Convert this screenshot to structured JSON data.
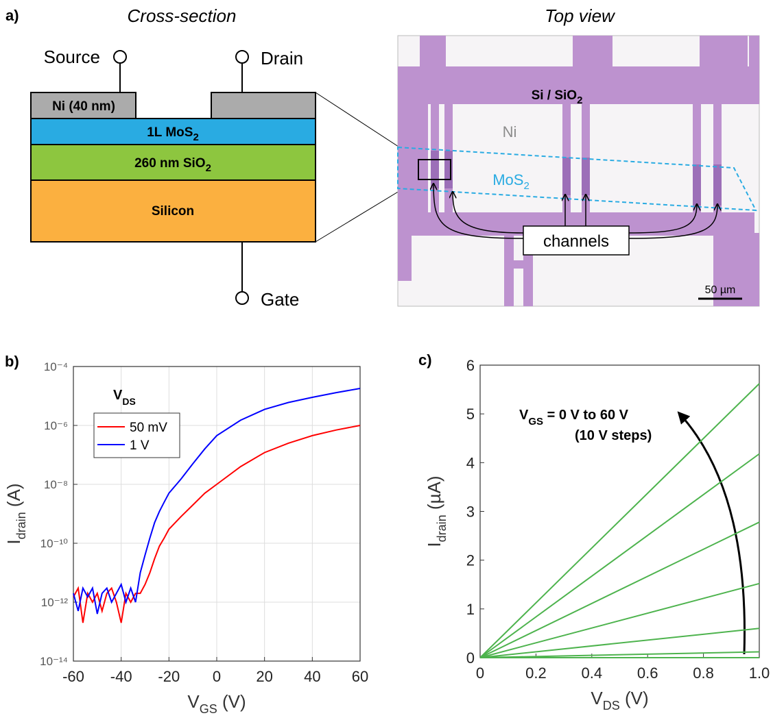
{
  "panel_a": {
    "label": "a)",
    "cross_section_title": "Cross-section",
    "top_view_title": "Top view",
    "source": "Source",
    "drain": "Drain",
    "gate": "Gate",
    "layers": [
      {
        "text": "Ni (40 nm)"
      },
      {
        "text": "1L MoS",
        "sub": "2"
      },
      {
        "text": "260 nm SiO",
        "sub": "2"
      },
      {
        "text": "Silicon"
      }
    ],
    "photo_labels": {
      "substrate": {
        "text": "Si / SiO",
        "sub": "2"
      },
      "metal": "Ni",
      "flake": {
        "text": "MoS",
        "sub": "2"
      },
      "channels": "channels",
      "scale_bar": "50 µm"
    }
  },
  "chart_data": [
    {
      "panel_label": "b)",
      "type": "line",
      "log_y": true,
      "grid": true,
      "xlabel": {
        "text": "V",
        "sub": "GS",
        "suffix": " (V)"
      },
      "ylabel": {
        "text": "I",
        "sub": "drain",
        "suffix": " (A)"
      },
      "legend_title": {
        "text": "V",
        "sub": "DS"
      },
      "legend_position": "upper left",
      "x": [
        -60,
        -58,
        -56,
        -54,
        -52,
        -50,
        -48,
        -46,
        -44,
        -42,
        -40,
        -38,
        -36,
        -34,
        -32,
        -30,
        -28,
        -26,
        -24,
        -22,
        -20,
        -15,
        -10,
        -5,
        0,
        10,
        20,
        30,
        40,
        50,
        60
      ],
      "series": [
        {
          "name": "50 mV",
          "color": "#ff0000",
          "values": [
            1.5e-12,
            3e-12,
            2e-13,
            2e-12,
            1e-12,
            2e-12,
            5e-13,
            2e-12,
            3e-12,
            1e-12,
            2e-13,
            2e-12,
            1e-12,
            2e-12,
            2e-12,
            4e-12,
            1e-11,
            3e-11,
            8e-11,
            1.5e-10,
            3e-10,
            8e-10,
            2e-09,
            5e-09,
            1e-08,
            4e-08,
            1.2e-07,
            2.5e-07,
            4.5e-07,
            7e-07,
            1e-06
          ]
        },
        {
          "name": "1 V",
          "color": "#0000ff",
          "values": [
            2e-12,
            5e-13,
            3e-12,
            1.5e-12,
            3e-12,
            4e-13,
            2e-12,
            3e-12,
            1e-12,
            2e-12,
            4e-12,
            1e-12,
            3e-12,
            1e-12,
            1e-11,
            4e-11,
            1.5e-10,
            5e-10,
            1.2e-09,
            2.5e-09,
            5e-09,
            1.5e-08,
            5e-08,
            1.6e-07,
            4.5e-07,
            1.5e-06,
            3.5e-06,
            6e-06,
            9e-06,
            1.3e-05,
            1.8e-05
          ]
        }
      ],
      "xlim": [
        -60,
        60
      ],
      "xticks": [
        -60,
        -40,
        -20,
        0,
        20,
        40,
        60
      ],
      "ylim": [
        1e-14,
        0.0001
      ],
      "yticks": [
        {
          "value": 1e-14,
          "label": "10⁻¹⁴"
        },
        {
          "value": 1e-12,
          "label": "10⁻¹²"
        },
        {
          "value": 1e-10,
          "label": "10⁻¹⁰"
        },
        {
          "value": 1e-08,
          "label": "10⁻⁸"
        },
        {
          "value": 1e-06,
          "label": "10⁻⁶"
        },
        {
          "value": 0.0001,
          "label": "10⁻⁴"
        }
      ]
    },
    {
      "panel_label": "c)",
      "type": "line",
      "grid": false,
      "xlabel": {
        "text": "V",
        "sub": "DS",
        "suffix": " (V)"
      },
      "ylabel": {
        "text": "I",
        "sub": "drain",
        "suffix": " (µA)"
      },
      "annotation": {
        "text": "V",
        "sub": "GS",
        "suffix": " = 0 V to 60 V"
      },
      "annotation_2": "(10 V steps)",
      "x": [
        0,
        1
      ],
      "series": [
        {
          "color": "#4db34d",
          "values": [
            0,
            0
          ]
        },
        {
          "color": "#4db34d",
          "values": [
            0,
            0.12
          ]
        },
        {
          "color": "#4db34d",
          "values": [
            0,
            0.6
          ]
        },
        {
          "color": "#4db34d",
          "values": [
            0,
            1.52
          ]
        },
        {
          "color": "#4db34d",
          "values": [
            0,
            2.78
          ]
        },
        {
          "color": "#4db34d",
          "values": [
            0,
            4.18
          ]
        },
        {
          "color": "#4db34d",
          "values": [
            0,
            5.62
          ]
        }
      ],
      "xlim": [
        0,
        1
      ],
      "xticks": [
        0,
        0.2,
        0.4,
        0.6,
        0.8,
        {
          "value": 1,
          "label": "1.0"
        }
      ],
      "ylim": [
        0,
        6
      ],
      "yticks": [
        0,
        1,
        2,
        3,
        4,
        5,
        6
      ]
    }
  ]
}
